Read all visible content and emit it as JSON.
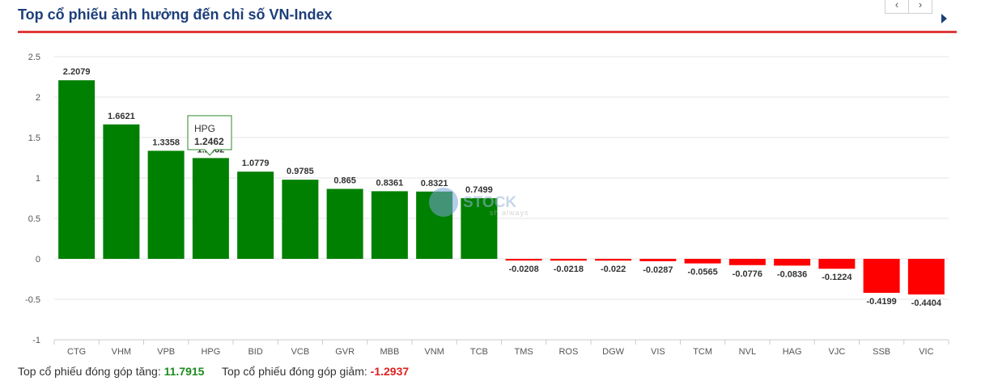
{
  "header": {
    "title": "Top cổ phiếu ảnh hưởng đến chỉ số VN-Index"
  },
  "nav": {
    "prev_icon": "‹",
    "next_icon": "›"
  },
  "watermark": {
    "text": "STOCK",
    "subtext": "sh always"
  },
  "tooltip": {
    "label": "HPG",
    "value": "1.2462"
  },
  "footer": {
    "up_label": "Top cổ phiếu đóng góp tăng:",
    "up_value": "11.7915",
    "down_label": "Top cổ phiếu đóng góp giảm:",
    "down_value": "-1.2937"
  },
  "colors": {
    "positive": "#008000",
    "negative": "#ff0000",
    "title": "#1d3f7a",
    "accent": "#e03a3a"
  },
  "chart_data": {
    "type": "bar",
    "categories": [
      "CTG",
      "VHM",
      "VPB",
      "HPG",
      "BID",
      "VCB",
      "GVR",
      "MBB",
      "VNM",
      "TCB",
      "TMS",
      "ROS",
      "DGW",
      "VIS",
      "TCM",
      "NVL",
      "HAG",
      "VJC",
      "SSB",
      "VIC"
    ],
    "values": [
      2.2079,
      1.6621,
      1.3358,
      1.2462,
      1.0779,
      0.9785,
      0.865,
      0.8361,
      0.8321,
      0.7499,
      -0.0208,
      -0.0218,
      -0.022,
      -0.0287,
      -0.0565,
      -0.0776,
      -0.0836,
      -0.1224,
      -0.4199,
      -0.4404
    ],
    "labels": [
      "2.2079",
      "1.6621",
      "1.3358",
      "1.2462",
      "1.0779",
      "0.9785",
      "0.865",
      "0.8361",
      "0.8321",
      "0.7499",
      "-0.0208",
      "-0.0218",
      "-0.022",
      "-0.0287",
      "-0.0565",
      "-0.0776",
      "-0.0836",
      "-0.1224",
      "-0.4199",
      "-0.4404"
    ],
    "yticks": [
      "2.5",
      "2",
      "1.5",
      "1",
      "0.5",
      "0",
      "-0.5",
      "-1"
    ],
    "ylim": [
      -1,
      2.5
    ],
    "grid": true,
    "legend": "none"
  }
}
